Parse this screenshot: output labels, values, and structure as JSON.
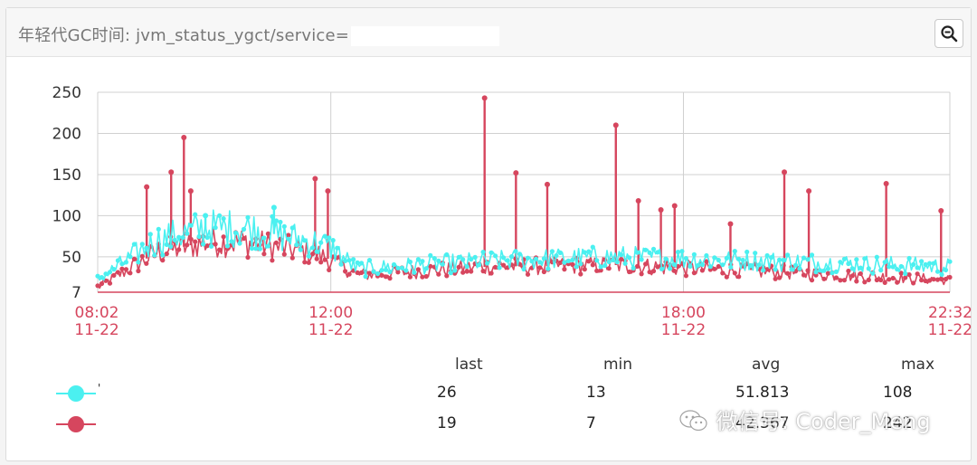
{
  "header": {
    "title": "年轻代GC时间: jvm_status_ygct/service=",
    "zoom_icon": "zoom-out-icon"
  },
  "colors": {
    "series_cyan": "#4bf0f0",
    "series_red": "#d6465e",
    "axis_label_red": "#d6465e",
    "grid": "#d0d0d0"
  },
  "chart_data": {
    "type": "line",
    "y_ticks": [
      "250",
      "200",
      "150",
      "100",
      "50",
      "7"
    ],
    "ylim": [
      7,
      250
    ],
    "x_ticks": [
      {
        "time": "08:02",
        "date": "11-22"
      },
      {
        "time": "12:00",
        "date": "11-22"
      },
      {
        "time": "18:00",
        "date": "11-22"
      },
      {
        "time": "22:32",
        "date": "11-22"
      }
    ],
    "x_range_minutes": [
      0,
      870
    ],
    "grid": true,
    "series": [
      {
        "color": "#4bf0f0",
        "profile": [
          [
            0,
            22
          ],
          [
            60,
            70
          ],
          [
            110,
            85
          ],
          [
            150,
            85
          ],
          [
            220,
            68
          ],
          [
            240,
            60
          ],
          [
            265,
            35
          ],
          [
            400,
            45
          ],
          [
            530,
            50
          ],
          [
            870,
            38
          ]
        ],
        "spikes": [
          [
            180,
            110
          ],
          [
            110,
            100
          ]
        ],
        "stats": {
          "last": "26",
          "min": "13",
          "avg": "51.813",
          "max": "108"
        }
      },
      {
        "color": "#d6465e",
        "profile": [
          [
            0,
            13
          ],
          [
            60,
            55
          ],
          [
            110,
            68
          ],
          [
            150,
            68
          ],
          [
            220,
            55
          ],
          [
            240,
            45
          ],
          [
            265,
            28
          ],
          [
            400,
            38
          ],
          [
            530,
            40
          ],
          [
            870,
            22
          ]
        ],
        "spikes": [
          [
            50,
            135
          ],
          [
            75,
            153
          ],
          [
            88,
            195
          ],
          [
            95,
            130
          ],
          [
            222,
            145
          ],
          [
            235,
            130
          ],
          [
            395,
            243
          ],
          [
            427,
            152
          ],
          [
            459,
            138
          ],
          [
            529,
            210
          ],
          [
            552,
            118
          ],
          [
            575,
            107
          ],
          [
            589,
            112
          ],
          [
            646,
            90
          ],
          [
            701,
            153
          ],
          [
            726,
            130
          ],
          [
            805,
            139
          ],
          [
            861,
            106
          ]
        ],
        "stats": {
          "last": "19",
          "min": "7",
          "avg": "42.367",
          "max": "242"
        }
      }
    ]
  },
  "legend": {
    "headers": {
      "last": "last",
      "min": "min",
      "avg": "avg",
      "max": "max"
    },
    "cyan_label": "'"
  },
  "watermark": {
    "text": "微信号: Coder_Meng",
    "icon": "wechat-icon"
  }
}
